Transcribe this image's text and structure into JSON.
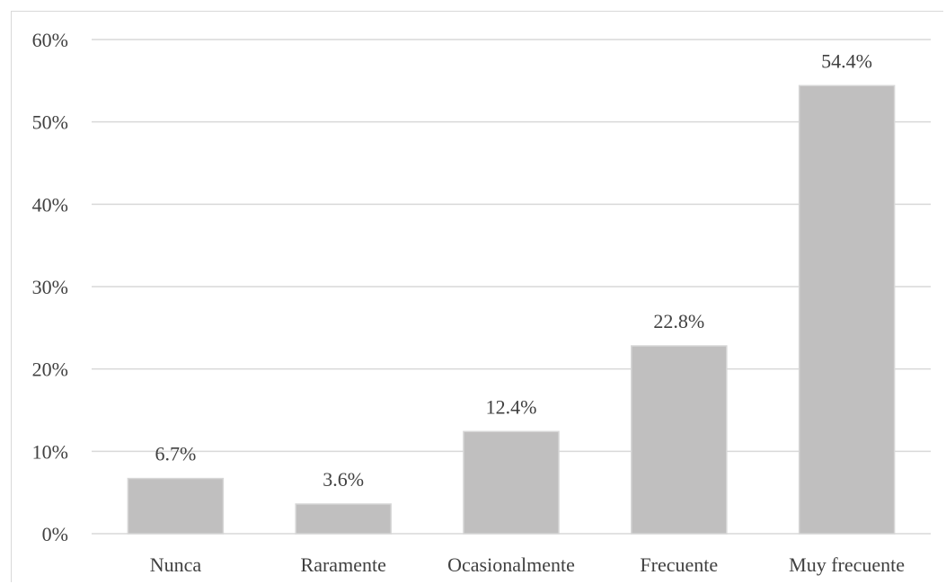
{
  "chart_data": {
    "type": "bar",
    "categories": [
      "Nunca",
      "Raramente",
      "Ocasionalmente",
      "Frecuente",
      "Muy frecuente"
    ],
    "values": [
      6.7,
      3.6,
      12.4,
      22.8,
      54.4
    ],
    "value_labels": [
      "6.7%",
      "3.6%",
      "12.4%",
      "22.8%",
      "54.4%"
    ],
    "title": "",
    "xlabel": "",
    "ylabel": "",
    "ylim": [
      0,
      60
    ],
    "yticks": [
      0,
      10,
      20,
      30,
      40,
      50,
      60
    ],
    "ytick_labels": [
      "0%",
      "10%",
      "20%",
      "30%",
      "40%",
      "50%",
      "60%"
    ],
    "grid": true,
    "legend": "none",
    "colors": {
      "bar": "#c0bfbf",
      "bar_edge": "#d6d6d6",
      "grid": "#d9d9d9",
      "text": "#404040"
    }
  }
}
